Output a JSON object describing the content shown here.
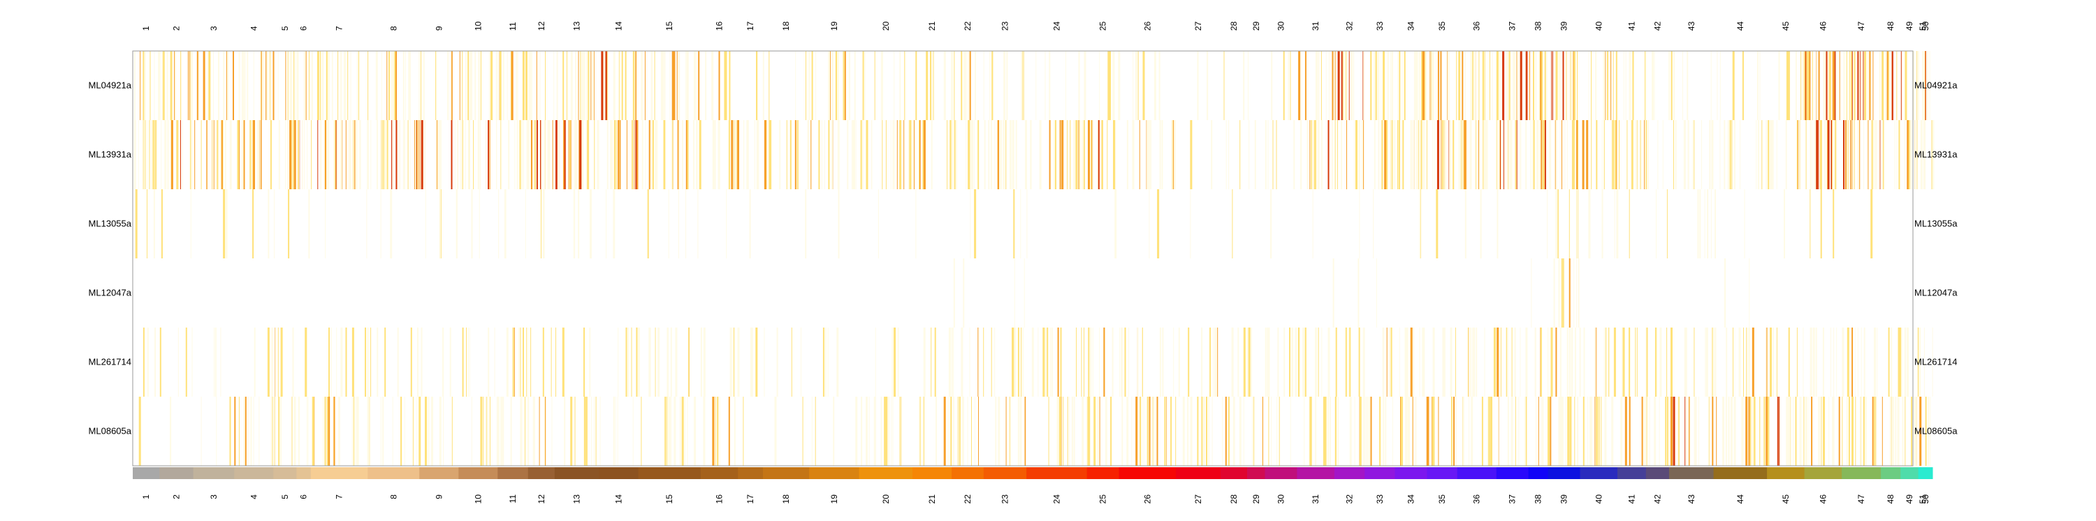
{
  "chart_data": {
    "type": "heatmap",
    "title": "",
    "xlabel": "",
    "ylabel": "",
    "rows": [
      "ML04921a",
      "ML13931a",
      "ML13055a",
      "ML12047a",
      "ML261714",
      "ML08605a"
    ],
    "x_unit_range": [
      0,
      1000
    ],
    "clusters": [
      {
        "label": "1",
        "start": 0,
        "end": 15,
        "color": "#a8a8a8"
      },
      {
        "label": "2",
        "start": 15,
        "end": 34,
        "color": "#b2a89c"
      },
      {
        "label": "3",
        "start": 34,
        "end": 57,
        "color": "#c0b29c"
      },
      {
        "label": "4",
        "start": 57,
        "end": 79,
        "color": "#cbb79a"
      },
      {
        "label": "5",
        "start": 79,
        "end": 92,
        "color": "#d6bc98"
      },
      {
        "label": "6",
        "start": 92,
        "end": 100,
        "color": "#e4c394"
      },
      {
        "label": "7",
        "start": 100,
        "end": 132,
        "color": "#f6cd93"
      },
      {
        "label": "8",
        "start": 132,
        "end": 161,
        "color": "#eec08a"
      },
      {
        "label": "9",
        "start": 161,
        "end": 183,
        "color": "#d9a56f"
      },
      {
        "label": "10",
        "start": 183,
        "end": 205,
        "color": "#c58c58"
      },
      {
        "label": "11",
        "start": 205,
        "end": 222,
        "color": "#ac7344"
      },
      {
        "label": "12",
        "start": 222,
        "end": 237,
        "color": "#986033"
      },
      {
        "label": "13",
        "start": 237,
        "end": 262,
        "color": "#8b5425"
      },
      {
        "label": "14",
        "start": 262,
        "end": 284,
        "color": "#8c5220"
      },
      {
        "label": "15",
        "start": 284,
        "end": 319,
        "color": "#97581d"
      },
      {
        "label": "16",
        "start": 319,
        "end": 340,
        "color": "#a5611b"
      },
      {
        "label": "17",
        "start": 340,
        "end": 354,
        "color": "#b46b19"
      },
      {
        "label": "18",
        "start": 354,
        "end": 380,
        "color": "#c47516"
      },
      {
        "label": "19",
        "start": 380,
        "end": 408,
        "color": "#d98312"
      },
      {
        "label": "20",
        "start": 408,
        "end": 438,
        "color": "#ee920c"
      },
      {
        "label": "21",
        "start": 438,
        "end": 460,
        "color": "#f58606"
      },
      {
        "label": "22",
        "start": 460,
        "end": 478,
        "color": "#f47103"
      },
      {
        "label": "23",
        "start": 478,
        "end": 502,
        "color": "#f45c02"
      },
      {
        "label": "24",
        "start": 502,
        "end": 536,
        "color": "#f43d01"
      },
      {
        "label": "25",
        "start": 536,
        "end": 554,
        "color": "#f62100"
      },
      {
        "label": "26",
        "start": 554,
        "end": 586,
        "color": "#f60604"
      },
      {
        "label": "27",
        "start": 586,
        "end": 611,
        "color": "#ee0015"
      },
      {
        "label": "28",
        "start": 611,
        "end": 626,
        "color": "#e0042f"
      },
      {
        "label": "29",
        "start": 626,
        "end": 636,
        "color": "#d00b52"
      },
      {
        "label": "30",
        "start": 636,
        "end": 654,
        "color": "#c00f7b"
      },
      {
        "label": "31",
        "start": 654,
        "end": 675,
        "color": "#b413a4"
      },
      {
        "label": "32",
        "start": 675,
        "end": 692,
        "color": "#a316c7"
      },
      {
        "label": "33",
        "start": 692,
        "end": 709,
        "color": "#9018df"
      },
      {
        "label": "34",
        "start": 709,
        "end": 727,
        "color": "#7c18ee"
      },
      {
        "label": "35",
        "start": 727,
        "end": 744,
        "color": "#6818f5"
      },
      {
        "label": "36",
        "start": 744,
        "end": 766,
        "color": "#4a12f8"
      },
      {
        "label": "37",
        "start": 766,
        "end": 784,
        "color": "#2a08fb"
      },
      {
        "label": "38",
        "start": 784,
        "end": 795,
        "color": "#1104f7"
      },
      {
        "label": "39",
        "start": 795,
        "end": 813,
        "color": "#0c12e0"
      },
      {
        "label": "40",
        "start": 813,
        "end": 834,
        "color": "#2a2bbe"
      },
      {
        "label": "41",
        "start": 834,
        "end": 850,
        "color": "#453f98"
      },
      {
        "label": "42",
        "start": 850,
        "end": 863,
        "color": "#5a4a78"
      },
      {
        "label": "43",
        "start": 863,
        "end": 888,
        "color": "#7a6655"
      },
      {
        "label": "44",
        "start": 888,
        "end": 918,
        "color": "#956d1c"
      },
      {
        "label": "45",
        "start": 918,
        "end": 939,
        "color": "#b58f1c"
      },
      {
        "label": "46",
        "start": 939,
        "end": 960,
        "color": "#a5a53a"
      },
      {
        "label": "47",
        "start": 960,
        "end": 982,
        "color": "#86b85a"
      },
      {
        "label": "48",
        "start": 982,
        "end": 993,
        "color": "#6ccc82"
      },
      {
        "label": "49",
        "start": 993,
        "end": 1003,
        "color": "#4fdcaa"
      },
      {
        "label": "50",
        "start": 1003,
        "end": 1011,
        "color": "#2aebd0"
      },
      {
        "label": "51",
        "start": 1011,
        "end": 1000,
        "color": "#00ffff"
      }
    ],
    "color_scale": {
      "low": "#fffbe6",
      "mid": "#ffe27a",
      "high": "#f7a02a",
      "max": "#d73a0a"
    },
    "row_density": [
      [
        0.45,
        0.5,
        0.35,
        0.45,
        0.5,
        0.4,
        0.45,
        0.4,
        0.25,
        0.45,
        0.55,
        0.45,
        0.5,
        0.55,
        0.45,
        0.25,
        0.15,
        0.1,
        0.35,
        0.2,
        0.3,
        0.35,
        0.25,
        0.15,
        0.2,
        0.15,
        0.05,
        0.1,
        0.05,
        0.15,
        0.45,
        0.55,
        0.55,
        0.55,
        0.4,
        0.55,
        0.75,
        0.75,
        0.55,
        0.35,
        0.35,
        0.3,
        0.15,
        0.15,
        0.3,
        0.85,
        0.65,
        0.5,
        0.55,
        0.55,
        0.5
      ],
      [
        0.55,
        0.5,
        0.5,
        0.55,
        0.55,
        0.6,
        0.55,
        0.6,
        0.5,
        0.55,
        0.55,
        0.6,
        0.75,
        0.55,
        0.45,
        0.35,
        0.35,
        0.35,
        0.35,
        0.4,
        0.45,
        0.45,
        0.45,
        0.4,
        0.45,
        0.35,
        0.1,
        0.15,
        0.15,
        0.2,
        0.45,
        0.5,
        0.45,
        0.5,
        0.5,
        0.55,
        0.8,
        0.75,
        0.6,
        0.45,
        0.45,
        0.35,
        0.3,
        0.3,
        0.35,
        0.8,
        0.65,
        0.55,
        0.55,
        0.45,
        0.4
      ],
      [
        0.12,
        0.08,
        0.1,
        0.05,
        0.12,
        0.05,
        0.05,
        0.05,
        0.15,
        0.05,
        0.15,
        0.1,
        0.12,
        0.05,
        0.1,
        0.05,
        0.05,
        0.02,
        0.03,
        0.02,
        0.02,
        0.08,
        0.05,
        0.02,
        0.05,
        0.05,
        0.02,
        0.05,
        0.02,
        0.02,
        0.05,
        0.05,
        0.05,
        0.08,
        0.05,
        0.05,
        0.02,
        0.05,
        0.25,
        0.15,
        0.05,
        0.12,
        0.15,
        0.05,
        0.05,
        0.1,
        0.02,
        0.02,
        0.02,
        0.02,
        0.02
      ],
      [
        0.0,
        0.0,
        0.0,
        0.0,
        0.0,
        0.0,
        0.0,
        0.0,
        0.0,
        0.0,
        0.0,
        0.0,
        0.0,
        0.0,
        0.0,
        0.0,
        0.0,
        0.0,
        0.0,
        0.0,
        0.0,
        0.08,
        0.05,
        0.0,
        0.0,
        0.0,
        0.0,
        0.0,
        0.0,
        0.0,
        0.05,
        0.03,
        0.05,
        0.0,
        0.0,
        0.0,
        0.0,
        0.05,
        0.35,
        0.0,
        0.0,
        0.0,
        0.0,
        0.05,
        0.0,
        0.0,
        0.0,
        0.0,
        0.0,
        0.0,
        0.0
      ],
      [
        0.15,
        0.2,
        0.1,
        0.12,
        0.25,
        0.15,
        0.2,
        0.15,
        0.1,
        0.2,
        0.3,
        0.2,
        0.15,
        0.2,
        0.25,
        0.2,
        0.15,
        0.1,
        0.1,
        0.1,
        0.15,
        0.25,
        0.25,
        0.3,
        0.3,
        0.3,
        0.25,
        0.2,
        0.25,
        0.3,
        0.35,
        0.3,
        0.25,
        0.3,
        0.25,
        0.3,
        0.35,
        0.35,
        0.35,
        0.3,
        0.3,
        0.25,
        0.3,
        0.3,
        0.3,
        0.3,
        0.3,
        0.3,
        0.35,
        0.3,
        0.35
      ],
      [
        0.05,
        0.05,
        0.1,
        0.35,
        0.35,
        0.3,
        0.4,
        0.3,
        0.25,
        0.25,
        0.35,
        0.4,
        0.25,
        0.15,
        0.25,
        0.3,
        0.05,
        0.05,
        0.1,
        0.3,
        0.35,
        0.35,
        0.25,
        0.25,
        0.35,
        0.45,
        0.3,
        0.3,
        0.3,
        0.2,
        0.35,
        0.4,
        0.4,
        0.45,
        0.35,
        0.3,
        0.3,
        0.3,
        0.4,
        0.4,
        0.35,
        0.4,
        0.5,
        0.5,
        0.55,
        0.5,
        0.45,
        0.45,
        0.5,
        0.5,
        0.55
      ]
    ]
  }
}
